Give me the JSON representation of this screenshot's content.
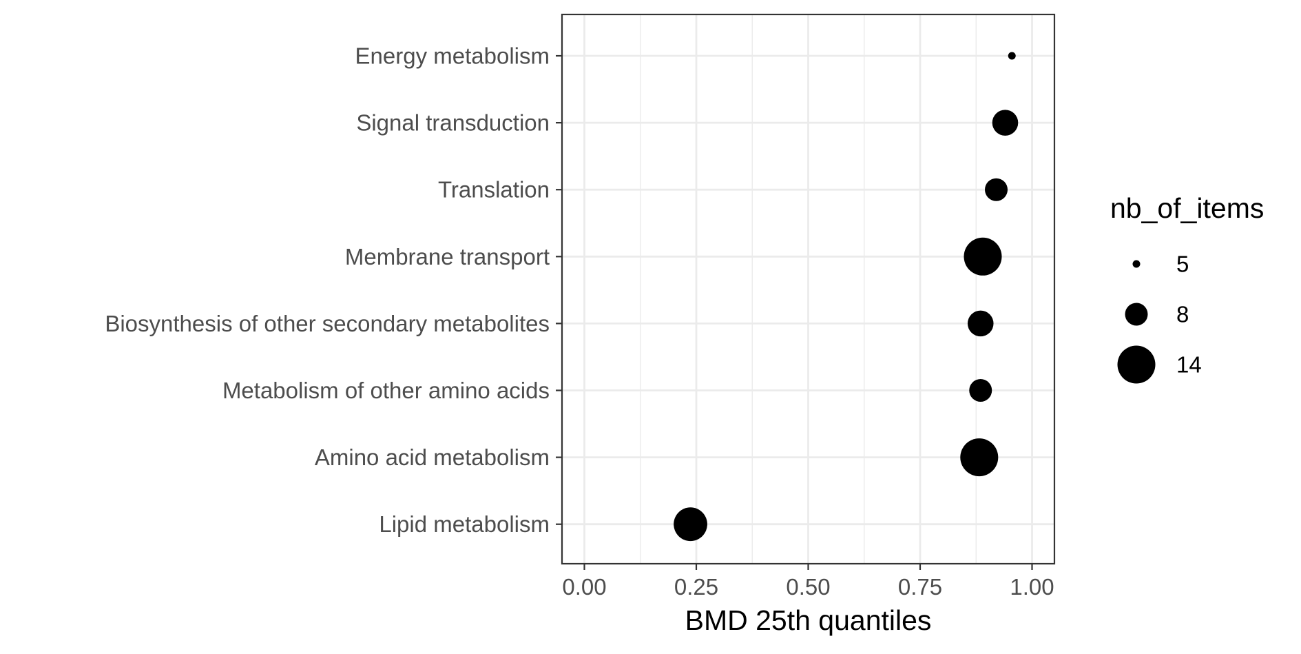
{
  "chart_data": {
    "type": "scatter",
    "title": "",
    "xlabel": "BMD 25th quantiles",
    "ylabel": "",
    "xlim": [
      -0.05,
      1.05
    ],
    "x_ticks": [
      0,
      0.25,
      0.5,
      0.75,
      1
    ],
    "x_tick_labels": [
      "0.00",
      "0.25",
      "0.50",
      "0.75",
      "1.00"
    ],
    "categories": [
      "Energy metabolism",
      "Signal transduction",
      "Translation",
      "Membrane transport",
      "Biosynthesis of other secondary metabolites",
      "Metabolism of other amino acids",
      "Amino acid metabolism",
      "Lipid metabolism"
    ],
    "points": [
      {
        "category": "Energy metabolism",
        "x": 0.955,
        "size": 5
      },
      {
        "category": "Signal transduction",
        "x": 0.94,
        "size": 9
      },
      {
        "category": "Translation",
        "x": 0.92,
        "size": 8
      },
      {
        "category": "Membrane transport",
        "x": 0.89,
        "size": 14
      },
      {
        "category": "Biosynthesis of other secondary metabolites",
        "x": 0.885,
        "size": 9
      },
      {
        "category": "Metabolism of other amino acids",
        "x": 0.885,
        "size": 8
      },
      {
        "category": "Amino acid metabolism",
        "x": 0.882,
        "size": 14
      },
      {
        "category": "Lipid metabolism",
        "x": 0.237,
        "size": 12
      }
    ],
    "legend": {
      "title": "nb_of_items",
      "placement": "right",
      "entries": [
        {
          "label": "5",
          "size": 5
        },
        {
          "label": "8",
          "size": 8
        },
        {
          "label": "14",
          "size": 14
        }
      ]
    },
    "grid": true,
    "point_color": "#000000",
    "grid_color": "#ebebeb",
    "axis_text_color": "#4d4d4d",
    "panel_border_color": "#333333"
  }
}
